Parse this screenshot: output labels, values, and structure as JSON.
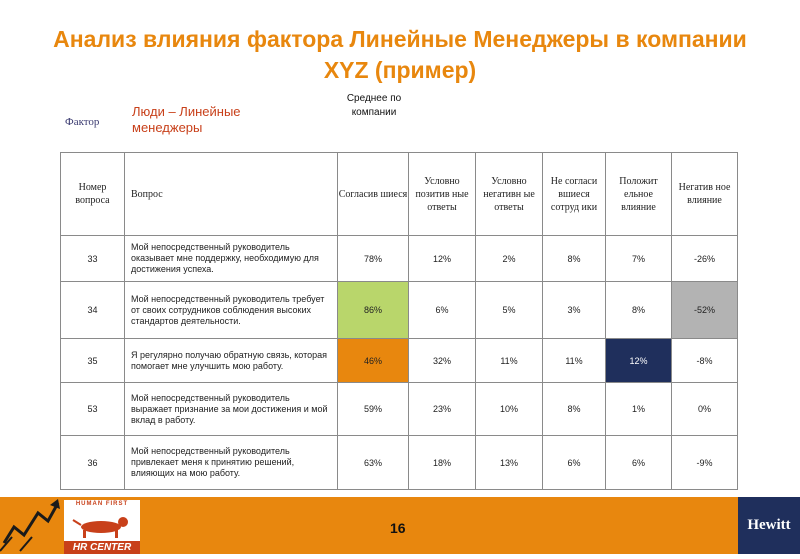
{
  "slide": {
    "title": "Анализ влияния фактора Линейные Менеджеры в компании XYZ (пример)",
    "factor_label": "Фактор",
    "factor_value": "Люди – Линейные менеджеры",
    "avg_header": "Среднее по компании",
    "page_number": "16"
  },
  "table": {
    "columns": [
      "Номер вопроса",
      "Вопрос",
      "Согласив шиеся",
      "Условно позитив ные ответы",
      "Условно негативн ые ответы",
      "Не согласи вшиеся сотруд ики",
      "Положит ельное влияние",
      "Негатив ное влияние"
    ],
    "rows": [
      {
        "num": "33",
        "question": "Мой непосредственный руководитель оказывает мне поддержку, необходимую для достижения успеха.",
        "agree": "78%",
        "pos": "12%",
        "neg": "2%",
        "disagree": "8%",
        "pos_impact": "7%",
        "neg_impact": "-26%"
      },
      {
        "num": "34",
        "question": "Мой непосредственный руководитель требует от своих сотрудников соблюдения высоких стандартов деятельности.",
        "agree": "86%",
        "pos": "6%",
        "neg": "5%",
        "disagree": "3%",
        "pos_impact": "8%",
        "neg_impact": "-52%"
      },
      {
        "num": "35",
        "question": "Я регулярно получаю обратную связь, которая помогает мне улучшить мою работу.",
        "agree": "46%",
        "pos": "32%",
        "neg": "11%",
        "disagree": "11%",
        "pos_impact": "12%",
        "neg_impact": "-8%"
      },
      {
        "num": "53",
        "question": "Мой непосредственный руководитель выражает признание за мои достижения и мой вклад в работу.",
        "agree": "59%",
        "pos": "23%",
        "neg": "10%",
        "disagree": "8%",
        "pos_impact": "1%",
        "neg_impact": "0%"
      },
      {
        "num": "36",
        "question": "Мой непосредственный руководитель привлекает меня к принятию решений, влияющих на мою работу.",
        "agree": "63%",
        "pos": "18%",
        "neg": "13%",
        "disagree": "6%",
        "pos_impact": "6%",
        "neg_impact": "-9%"
      }
    ]
  },
  "logos": {
    "hr_top": "HUMAN FIRST",
    "hr_brand": "HR CENTER",
    "hewitt": "Hewitt"
  },
  "colors": {
    "accent_orange": "#e8870e",
    "highlight_green": "#b9d66b",
    "highlight_navy": "#1f2f5c",
    "highlight_gray": "#b3b3b3",
    "factor_red": "#c8401a"
  }
}
